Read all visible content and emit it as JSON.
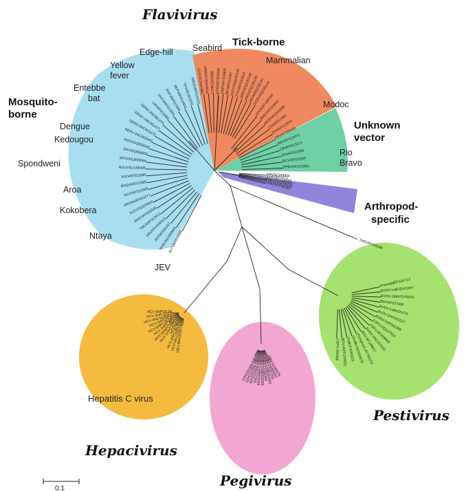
{
  "genera": {
    "flavivirus": "Flavivirus",
    "pestivirus": "Pestivirus",
    "hepacivirus": "Hepacivirus",
    "pegivirus": "Pegivirus"
  },
  "clades": {
    "mosquito_borne": [
      "Mosquito-",
      "borne"
    ],
    "tick_borne": "Tick-borne",
    "unknown_vector": [
      "Unknown",
      "vector"
    ],
    "arthropod_specific": [
      "Arthropod-",
      "specific"
    ],
    "hepatitis_c": "Hepatitis C virus"
  },
  "colors": {
    "mosquito": "#a8dff0",
    "tick": "#f0895f",
    "unknown": "#6fd0a6",
    "arthropod": "#8f86dc",
    "pestivirus": "#a6e26f",
    "pegivirus": "#f2a7d2",
    "hepacivirus": "#f4bb3f"
  },
  "groups": {
    "seabird": "Seabird",
    "mammalian": "Mammalian",
    "edge_hill": "Edge-hill",
    "yellow_fever": [
      "Yellow",
      "fever"
    ],
    "entebbe_bat": [
      "Entebbe",
      "bat"
    ],
    "dengue": "Dengue",
    "kedougou": "Kedougou",
    "spondweni": "Spondweni",
    "aroa": "Aroa",
    "kokobera": "Kokobera",
    "ntaya": "Ntaya",
    "jev": "JEV",
    "modoc": "Modoc",
    "rio_bravo": [
      "Rio",
      "Bravo"
    ]
  },
  "leaves": {
    "mosquito": [
      "WESVAF013413",
      "YFVNC002031",
      "SEPVAF013403",
      "ENTVAF013384",
      "ENTVAF013384",
      "LMVAF013366",
      "DENV-2NC001474",
      "DENV-1NC001477",
      "DENV-3NC001475",
      "DENV-4NC002640",
      "KEDVDQ859060",
      "ZIKVDQ859059",
      "SPOVDQ859064",
      "NOUVEU159426",
      "NJLVAF013390",
      "BSQVAF013366",
      "IGUVAF013389",
      "AROAVAF013377",
      "SLEVDQ525916",
      "BAGVAY632545",
      "TMUVAF013412",
      "USUVAY453412",
      "JEVNC001437",
      "MVEVNC000943",
      "ALFVAF013360"
    ],
    "tick": [
      "TBEVNC001672",
      "POWVNC003687",
      "LIVNC001809",
      "KFDVAY323490",
      "OHFVAY193805",
      "RFVAF013397",
      "GGYVDQ235145",
      "TYUVAF013414",
      "SREVDQ235149",
      "KADVDQ235146",
      "MEAVDQ235144",
      "GGEVDQ235144"
    ],
    "unknown": [
      "APOIVAF160193",
      "MMLVAF013401",
      "MODVAJ242984",
      "CIVAF013402",
      "SVVAF013379",
      "EBVAY299445",
      "RBVAF013370",
      "CBVAF013371",
      "SAVAF013386",
      "BCVAF013369",
      "PPBVAF013394"
    ],
    "arthropod": [
      "KRVAY149904",
      "CFAVM91671",
      "AEFVAY713533",
      "NAKVDQ859066",
      "CXFVDQ019509",
      "CHAOVJ746467"
    ],
    "outlier": "TABVAF265080",
    "pestivirus": [
      "UnassigdEF100713",
      "BVDV-1aBVDVCPP7",
      "BVDV-1bBVDVNADL",
      "BDVAF037405",
      "BVDV-1aBVDVCG",
      "BVDV-2AF002227",
      "BVDV-2AF502399",
      "CSFV-DQ127910",
      "CSFV-AF326963",
      "BVDV-2NC002032",
      "BDV-AF144617",
      "Pronghorn-AY781152",
      "Giraffe-NC003678",
      "HoBi-FJ040215",
      "BDV-IAPF109021",
      "CSFV-J04358"
    ],
    "pegivirus": [
      "GBV-AAF023424",
      "GBV-AAF023425",
      "GBV-AAF023426",
      "GBV-AAU22303",
      "GBV-CAB003288",
      "GBV-CAB003290",
      "GBV-CU36380",
      "GBV-CAB003292",
      "GBV-CD87255",
      "GBV-CU44402",
      "GBV-CU45476"
    ],
    "hepacivirus": [
      "HCV-3HPCK3A",
      "HCV-3HPCEGS",
      "HCV-4NCVA4RE1",
      "HCV-1HPCPLR",
      "HCV-6HPCJK049",
      "HCV-2HPCJ8G",
      "HCV-1bHPCUNK",
      "HCV-1HPCJCG",
      "HCV-5a",
      "HCV-2HPCJ6CF",
      "HCV-5EU155213",
      "GBV-BNC003274"
    ]
  },
  "scale_bar": "0.1"
}
